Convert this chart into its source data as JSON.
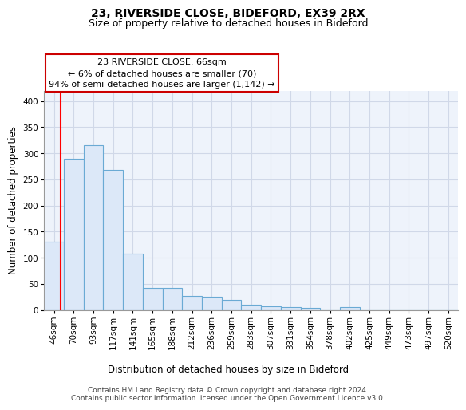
{
  "title_line1": "23, RIVERSIDE CLOSE, BIDEFORD, EX39 2RX",
  "title_line2": "Size of property relative to detached houses in Bideford",
  "xlabel": "Distribution of detached houses by size in Bideford",
  "ylabel": "Number of detached properties",
  "categories": [
    "46sqm",
    "70sqm",
    "93sqm",
    "117sqm",
    "141sqm",
    "165sqm",
    "188sqm",
    "212sqm",
    "236sqm",
    "259sqm",
    "283sqm",
    "307sqm",
    "331sqm",
    "354sqm",
    "378sqm",
    "402sqm",
    "425sqm",
    "449sqm",
    "473sqm",
    "497sqm",
    "520sqm"
  ],
  "bar_heights": [
    130,
    290,
    315,
    268,
    108,
    42,
    42,
    27,
    25,
    20,
    10,
    7,
    5,
    4,
    0,
    5,
    0,
    0,
    0,
    0,
    0
  ],
  "bar_color": "#dce8f8",
  "bar_edge_color": "#6aaad4",
  "background_color": "#eef3fb",
  "grid_color": "#d0d8e8",
  "annotation_text": "23 RIVERSIDE CLOSE: 66sqm\n← 6% of detached houses are smaller (70)\n94% of semi-detached houses are larger (1,142) →",
  "annotation_box_color": "#ffffff",
  "annotation_box_edge_color": "#cc0000",
  "footnote": "Contains HM Land Registry data © Crown copyright and database right 2024.\nContains public sector information licensed under the Open Government Licence v3.0.",
  "ylim": [
    0,
    420
  ],
  "yticks": [
    0,
    50,
    100,
    150,
    200,
    250,
    300,
    350,
    400
  ],
  "title_fontsize": 10,
  "subtitle_fontsize": 9,
  "axis_label_fontsize": 8.5,
  "tick_fontsize": 7.5,
  "annotation_fontsize": 8,
  "footnote_fontsize": 6.5
}
